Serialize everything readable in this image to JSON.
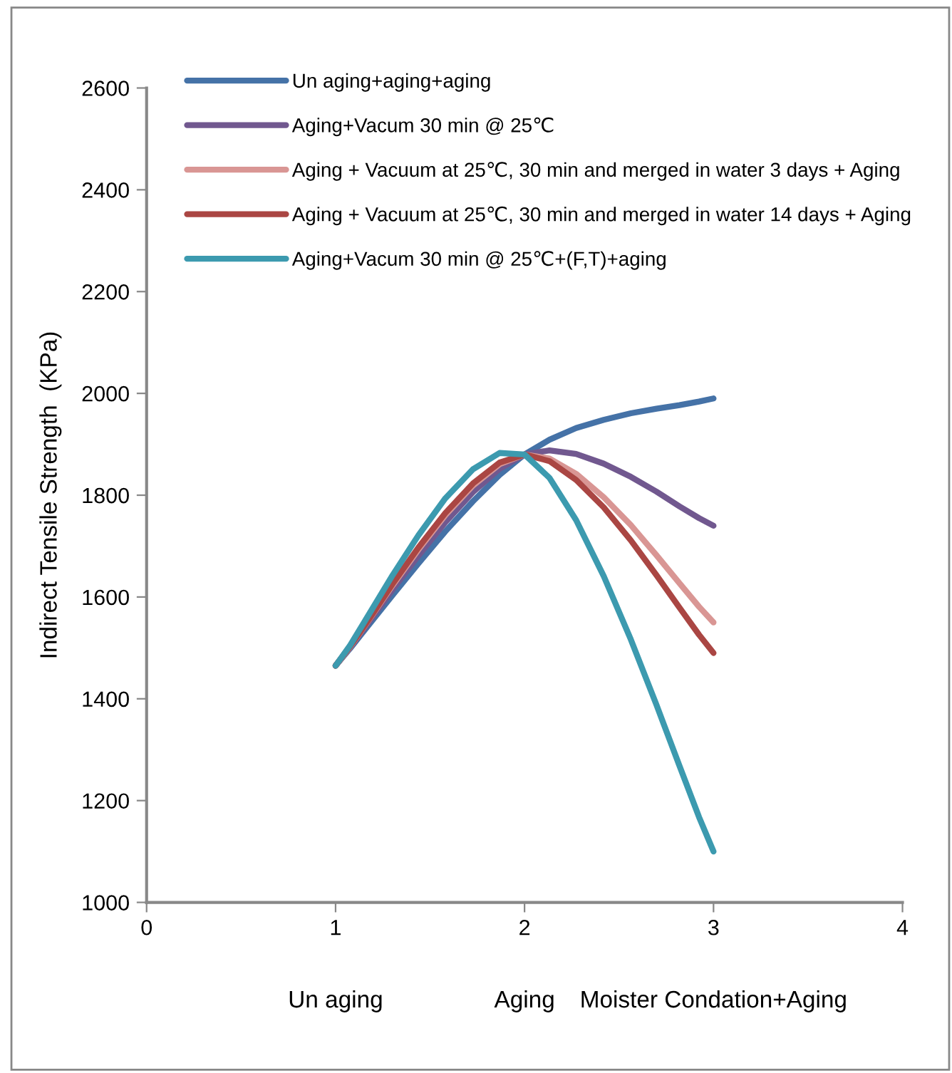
{
  "chart_data": {
    "type": "line",
    "ylabel": "Indirect Tensile Strength  (KPa)",
    "x": [
      1,
      1.077,
      1.18,
      1.302,
      1.438,
      1.581,
      1.727,
      1.868,
      2,
      2.132,
      2.273,
      2.419,
      2.563,
      2.698,
      2.82,
      2.923,
      3
    ],
    "series": [
      {
        "name": "Un aging+aging+aging",
        "color": "#4572a7",
        "values": [
          1465,
          1499,
          1547,
          1604,
          1666,
          1729,
          1788,
          1840,
          1880,
          1909,
          1932,
          1948,
          1961,
          1970,
          1977,
          1984,
          1990
        ]
      },
      {
        "name": "Aging+Vacum 30 min @ 25℃",
        "color": "#71588f",
        "values": [
          1465,
          1501,
          1553,
          1615,
          1681,
          1747,
          1806,
          1852,
          1880,
          1888,
          1881,
          1862,
          1836,
          1807,
          1778,
          1755,
          1740
        ]
      },
      {
        "name": "Aging + Vacuum at 25℃, 30 min and merged in water 3 days + Aging",
        "color": "#d99694",
        "values": [
          1465,
          1502,
          1557,
          1623,
          1693,
          1761,
          1819,
          1861,
          1880,
          1872,
          1842,
          1796,
          1741,
          1682,
          1627,
          1581,
          1550
        ]
      },
      {
        "name": "Aging + Vacuum at 25℃, 30 min and merged in water 14 days + Aging",
        "color": "#aa4643",
        "values": [
          1465,
          1503,
          1558,
          1626,
          1697,
          1765,
          1823,
          1864,
          1880,
          1867,
          1830,
          1776,
          1711,
          1643,
          1579,
          1526,
          1490
        ]
      },
      {
        "name": "Aging+Vacum 30 min @ 25℃+(F,T)+aging",
        "color": "#3c9aaf",
        "values": [
          1465,
          1505,
          1568,
          1643,
          1721,
          1794,
          1851,
          1883,
          1880,
          1834,
          1751,
          1641,
          1516,
          1388,
          1268,
          1168,
          1100
        ]
      }
    ],
    "xlim": [
      0,
      4
    ],
    "xticks": [
      0,
      1,
      2,
      3,
      4
    ],
    "ylim": [
      1000,
      2600
    ],
    "yticks": [
      1000,
      1200,
      1400,
      1600,
      1800,
      2000,
      2200,
      2400,
      2600
    ],
    "annotations": [
      "Un aging",
      "Aging",
      "Moister Condation+Aging"
    ],
    "legend": "top",
    "grid": false,
    "marker": "none",
    "line_style": "solid"
  }
}
